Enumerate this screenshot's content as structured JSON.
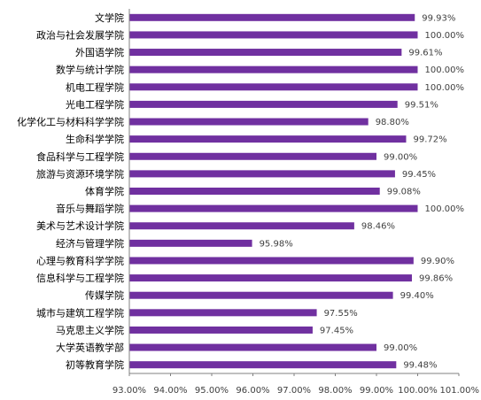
{
  "chart_data": {
    "type": "bar",
    "orientation": "horizontal",
    "title": "",
    "xlabel": "",
    "ylabel": "",
    "categories": [
      "文学院",
      "政治与社会发展学院",
      "外国语学院",
      "数学与统计学院",
      "机电工程学院",
      "光电工程学院",
      "化学化工与材料科学学院",
      "生命科学学院",
      "食品科学与工程学院",
      "旅游与资源环境学院",
      "体育学院",
      "音乐与舞蹈学院",
      "美术与艺术设计学院",
      "经济与管理学院",
      "心理与教育科学学院",
      "信息科学与工程学院",
      "传媒学院",
      "城市与建筑工程学院",
      "马克思主义学院",
      "大学英语教学部",
      "初等教育学院"
    ],
    "values": [
      99.93,
      100.0,
      99.61,
      100.0,
      100.0,
      99.51,
      98.8,
      99.72,
      99.0,
      99.45,
      99.08,
      100.0,
      98.46,
      95.98,
      99.9,
      99.86,
      99.4,
      97.55,
      97.45,
      99.0,
      99.48
    ],
    "value_labels": [
      "99.93%",
      "100.00%",
      "99.61%",
      "100.00%",
      "100.00%",
      "99.51%",
      "98.80%",
      "99.72%",
      "99.00%",
      "99.45%",
      "99.08%",
      "100.00%",
      "98.46%",
      "95.98%",
      "99.90%",
      "99.86%",
      "99.40%",
      "97.55%",
      "97.45%",
      "99.00%",
      "99.48%"
    ],
    "xlim": [
      93,
      101
    ],
    "xticks": [
      93,
      94,
      95,
      96,
      97,
      98,
      99,
      100,
      101
    ],
    "xtick_labels": [
      "93.00%",
      "94.00%",
      "95.00%",
      "96.00%",
      "97.00%",
      "98.00%",
      "99.00%",
      "100.00%",
      "101.00%"
    ],
    "bar_color": "#7030A0",
    "grid": false,
    "legend": "none"
  }
}
